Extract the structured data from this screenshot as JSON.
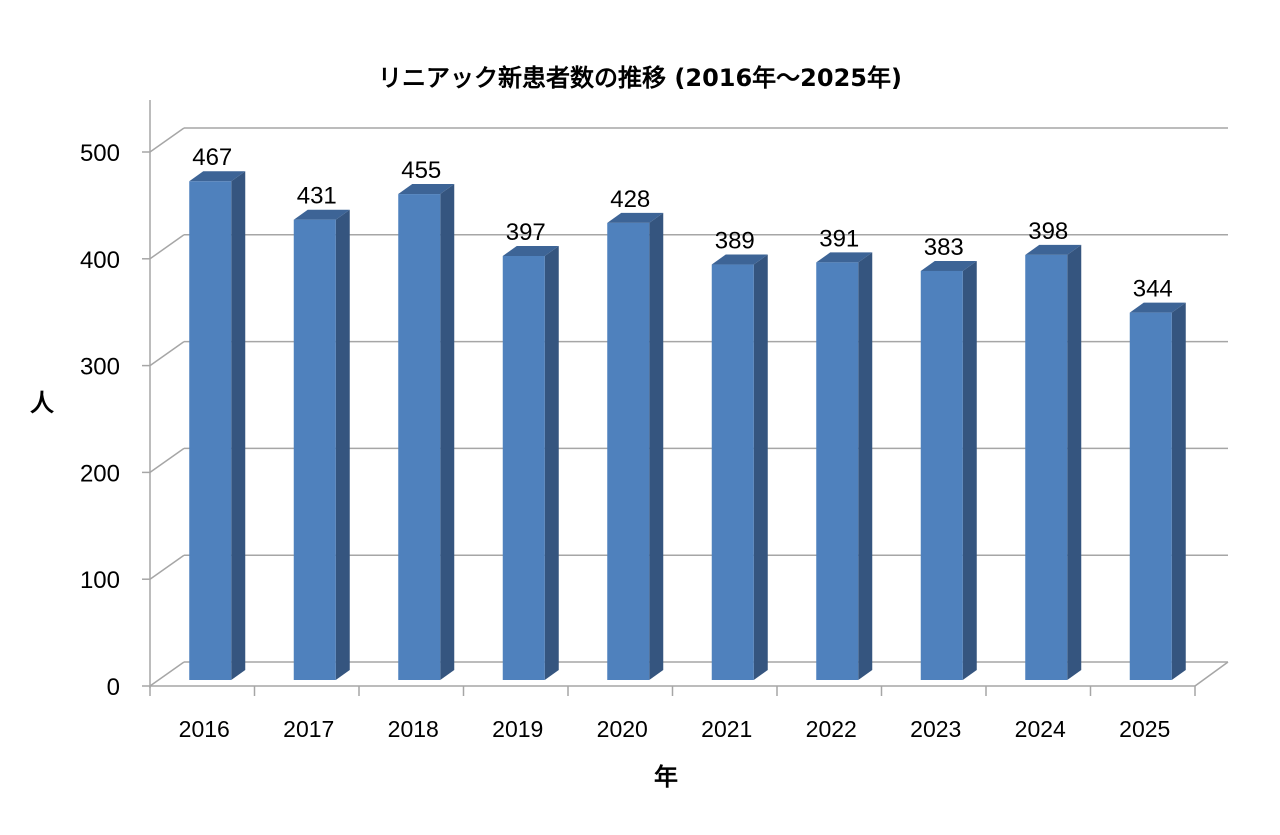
{
  "chart_data": {
    "type": "bar",
    "style": "3d-column",
    "title": "リニアック新患者数の推移 (2016年～2025年)",
    "xlabel": "年",
    "ylabel": "人",
    "categories": [
      "2016",
      "2017",
      "2018",
      "2019",
      "2020",
      "2021",
      "2022",
      "2023",
      "2024",
      "2025"
    ],
    "values": [
      467,
      431,
      455,
      397,
      428,
      389,
      391,
      383,
      398,
      344
    ],
    "data_labels": [
      "467",
      "431",
      "455",
      "397",
      "428",
      "389",
      "391",
      "383",
      "398",
      "344"
    ],
    "ylim": [
      0,
      500
    ],
    "yticks": [
      0,
      100,
      200,
      300,
      400,
      500
    ],
    "ytick_labels": [
      "0",
      "100",
      "200",
      "300",
      "400",
      "500"
    ],
    "grid": true,
    "legend": false,
    "colors": {
      "bar_front": "#4f81bd",
      "bar_side": "#35557f",
      "bar_top": "#3d6496",
      "grid": "#a6a6a6",
      "axis": "#a6a6a6",
      "text": "#000000"
    }
  }
}
